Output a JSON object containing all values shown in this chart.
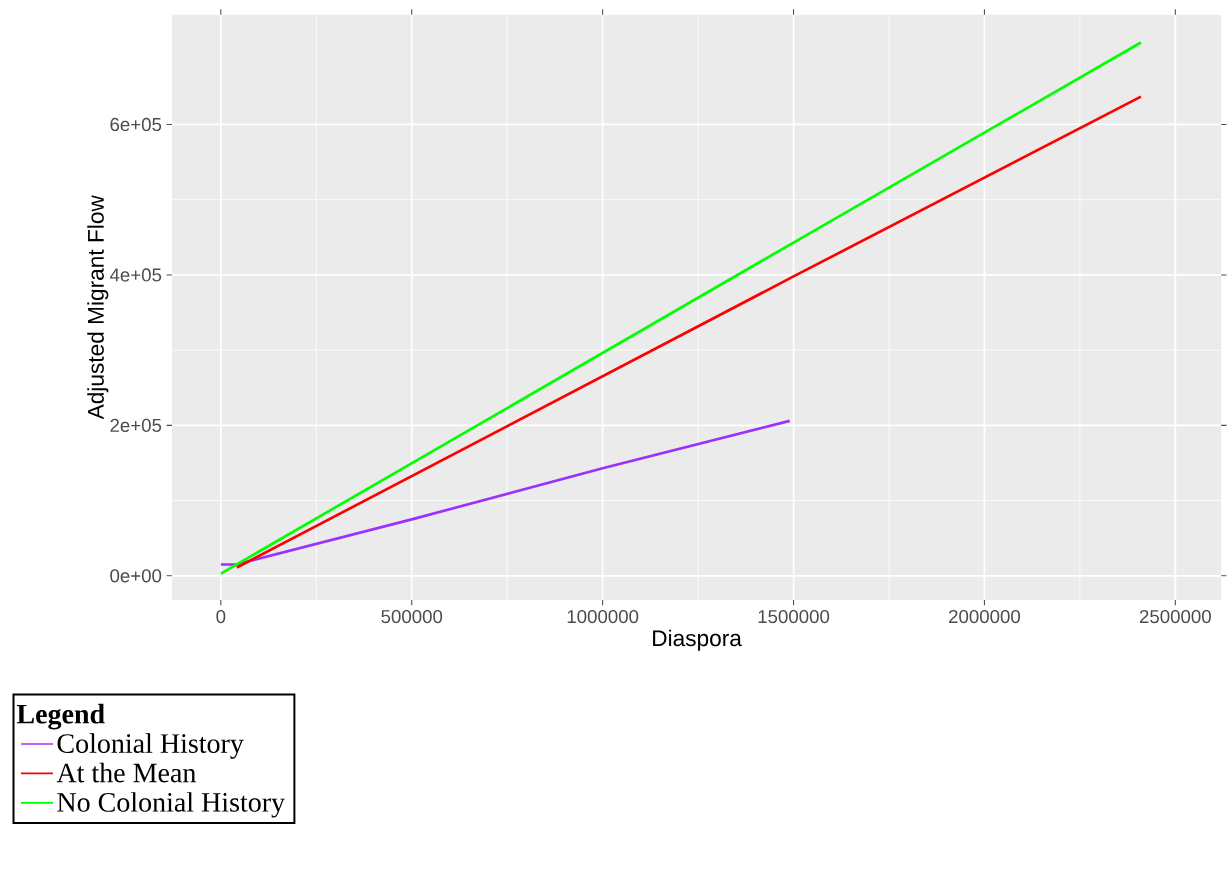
{
  "chart_data": {
    "type": "line",
    "xlabel": "Diaspora",
    "ylabel": "Adjusted Migrant Flow",
    "legend_title": "Legend",
    "xlim": [
      -128000,
      2620000
    ],
    "ylim": [
      -32000,
      746000
    ],
    "xticks": [
      0,
      500000,
      1000000,
      1500000,
      2000000,
      2500000
    ],
    "yticks": [
      {
        "value": 0,
        "label": "0e+00"
      },
      {
        "value": 200000,
        "label": "2e+05"
      },
      {
        "value": 400000,
        "label": "4e+05"
      },
      {
        "value": 600000,
        "label": "6e+05"
      }
    ],
    "grid": true,
    "legend": "bottom left",
    "line_style": "solid",
    "marker": "none",
    "series": [
      {
        "name": "Colonial History",
        "color": "#9b30ff",
        "x": [
          0,
          40000,
          500000,
          1000000,
          1490000
        ],
        "values": [
          15000,
          15000,
          75000,
          143000,
          206000
        ]
      },
      {
        "name": "At the Mean",
        "color": "#ff0000",
        "x": [
          42000,
          1500000,
          2410000
        ],
        "values": [
          11000,
          398000,
          637000
        ]
      },
      {
        "name": "No Colonial History",
        "color": "#00ff00",
        "x": [
          0,
          1500000,
          2410000
        ],
        "values": [
          3000,
          443000,
          709000
        ]
      }
    ]
  }
}
